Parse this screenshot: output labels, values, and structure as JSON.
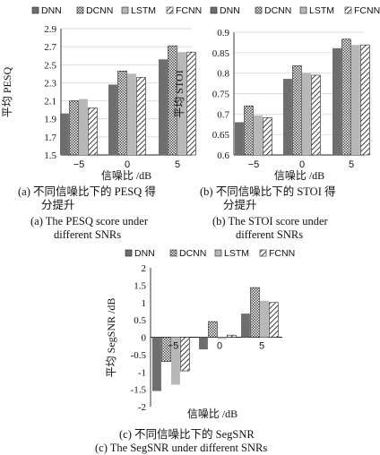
{
  "legend_labels": [
    "DNN",
    "DCNN",
    "LSTM",
    "FCNN"
  ],
  "colors": {
    "dnn": "#6e6e6e",
    "dcnn": "#5a5a5a",
    "lstm": "#b8b8b8",
    "fcnn": "#ffffff",
    "axis": "#222222",
    "grid": "#cfcfcf"
  },
  "chart_data": [
    {
      "type": "bar",
      "panel": "a",
      "categories": [
        "−5",
        "0",
        "5"
      ],
      "series": [
        {
          "name": "DNN",
          "values": [
            1.96,
            2.28,
            2.56
          ]
        },
        {
          "name": "DCNN",
          "values": [
            2.1,
            2.43,
            2.71
          ]
        },
        {
          "name": "LSTM",
          "values": [
            2.12,
            2.4,
            2.64
          ]
        },
        {
          "name": "FCNN",
          "values": [
            2.02,
            2.36,
            2.64
          ]
        }
      ],
      "ylim": [
        1.5,
        2.9
      ],
      "yticks": [
        "1.5",
        "1.7",
        "1.9",
        "2.1",
        "2.3",
        "2.5",
        "2.7",
        "2.9"
      ],
      "ylabel": "平均 PESQ",
      "xlabel": "信噪比 /dB",
      "grid": true,
      "caption_cn_1": "(a) 不同信噪比下的 PESQ 得",
      "caption_cn_2": "分提升",
      "caption_en_1": "(a) The PESQ score under",
      "caption_en_2": "different SNRs"
    },
    {
      "type": "bar",
      "panel": "b",
      "categories": [
        "−5",
        "0",
        "5"
      ],
      "series": [
        {
          "name": "DNN",
          "values": [
            0.68,
            0.786,
            0.861
          ]
        },
        {
          "name": "DCNN",
          "values": [
            0.72,
            0.818,
            0.883
          ]
        },
        {
          "name": "LSTM",
          "values": [
            0.697,
            0.801,
            0.869
          ]
        },
        {
          "name": "FCNN",
          "values": [
            0.691,
            0.795,
            0.869
          ]
        }
      ],
      "ylim": [
        0.6,
        0.9
      ],
      "yticks": [
        "0.6",
        "0.65",
        "0.7",
        "0.75",
        "0.8",
        "0.85",
        "0.9"
      ],
      "ylabel": "平均 STOI",
      "xlabel": "信噪比 /dB",
      "grid": true,
      "caption_cn_1": "(b) 不同信噪比下的 STOI 得",
      "caption_cn_2": "分提升",
      "caption_en_1": "(b) The STOI score under",
      "caption_en_2": "different SNRs"
    },
    {
      "type": "bar",
      "panel": "c",
      "categories": [
        "−5",
        "0",
        "5"
      ],
      "series": [
        {
          "name": "DNN",
          "values": [
            -1.55,
            -0.35,
            0.68
          ]
        },
        {
          "name": "DCNN",
          "values": [
            -0.7,
            0.45,
            1.43
          ]
        },
        {
          "name": "LSTM",
          "values": [
            -1.37,
            -0.05,
            1.05
          ]
        },
        {
          "name": "FCNN",
          "values": [
            -0.97,
            0.06,
            1.0
          ]
        }
      ],
      "ylim": [
        -2,
        2
      ],
      "yticks": [
        "-2",
        "-1.5",
        "-1",
        "-0.5",
        "0",
        "0.5",
        "1",
        "1.5",
        "2"
      ],
      "ylabel": "平均 SegSNR /dB",
      "xlabel": "信噪比 /dB",
      "grid": false,
      "caption_cn_1": "(c) 不同信噪比下的 SegSNR",
      "caption_en_1": "(c) The SegSNR under different SNRs"
    }
  ]
}
